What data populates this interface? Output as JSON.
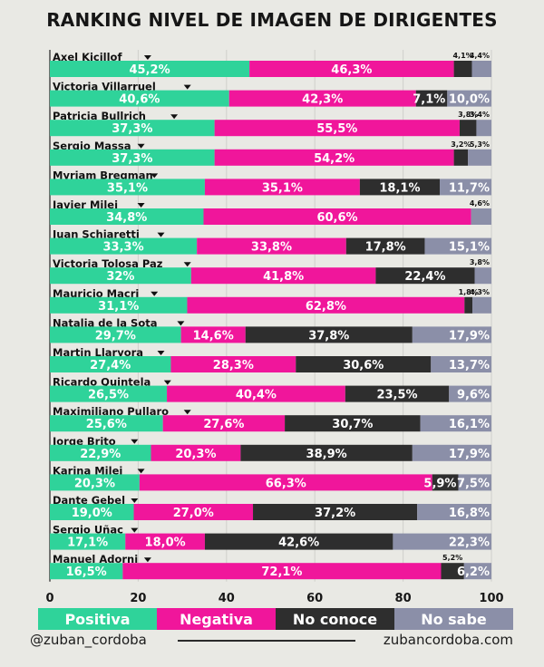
{
  "chart_data": {
    "type": "bar",
    "stacked": true,
    "orientation": "horizontal",
    "title": "RANKING NIVEL DE IMAGEN DE DIRIGENTES",
    "xlim": [
      0,
      100
    ],
    "xticks": [
      "0",
      "20",
      "40",
      "60",
      "80",
      "100"
    ],
    "grid": true,
    "legend_position": "bottom",
    "categories": [
      "Axel Kicillof",
      "Victoria Villarruel",
      "Patricia Bullrich",
      "Sergio Massa",
      "Myriam Bregman",
      "Javier Milei",
      "Juan Schiaretti",
      "Victoria Tolosa Paz",
      "Mauricio Macri",
      "Natalia de la Sota",
      "Martin Llaryora",
      "Ricardo Quintela",
      "Maximiliano Pullaro",
      "Jorge Brito",
      "Karina Milei",
      "Dante Gebel",
      "Sergio Uñac",
      "Manuel Adorni"
    ],
    "series": [
      {
        "name": "Positiva",
        "color": "#2fd39a",
        "values": [
          45.2,
          40.6,
          37.3,
          37.3,
          35.1,
          34.8,
          33.3,
          32,
          31.1,
          29.7,
          27.4,
          26.5,
          25.6,
          22.9,
          20.3,
          19.0,
          17.1,
          16.5
        ],
        "labels": [
          "45,2%",
          "40,6%",
          "37,3%",
          "37,3%",
          "35,1%",
          "34,8%",
          "33,3%",
          "32%",
          "31,1%",
          "29,7%",
          "27,4%",
          "26,5%",
          "25,6%",
          "22,9%",
          "20,3%",
          "19,0%",
          "17,1%",
          "16,5%"
        ]
      },
      {
        "name": "Negativa",
        "color": "#f0169b",
        "values": [
          46.3,
          42.3,
          55.5,
          54.2,
          35.1,
          60.6,
          33.8,
          41.8,
          62.8,
          14.6,
          28.3,
          40.4,
          27.6,
          20.3,
          66.3,
          27.0,
          18.0,
          72.1
        ],
        "labels": [
          "46,3%",
          "42,3%",
          "55,5%",
          "54,2%",
          "35,1%",
          "60,6%",
          "33,8%",
          "41,8%",
          "62,8%",
          "14,6%",
          "28,3%",
          "40,4%",
          "27,6%",
          "20,3%",
          "66,3%",
          "27,0%",
          "18,0%",
          "72,1%"
        ]
      },
      {
        "name": "No conoce",
        "color": "#2e2e2e",
        "values": [
          4.1,
          7.1,
          3.8,
          3.2,
          18.1,
          0,
          17.8,
          22.4,
          1.8,
          37.8,
          30.6,
          23.5,
          30.7,
          38.9,
          5.9,
          37.2,
          42.6,
          5.2
        ],
        "labels": [
          "4,1%",
          "7,1%",
          "3,8%",
          "3,2%",
          "18,1%",
          "",
          "17,8%",
          "22,4%",
          "1,8%",
          "37,8%",
          "30,6%",
          "23,5%",
          "30,7%",
          "38,9%",
          "5,9%",
          "37,2%",
          "42,6%",
          "5,2%"
        ]
      },
      {
        "name": "No sabe",
        "color": "#8b8fa8",
        "values": [
          4.4,
          10.0,
          3.4,
          5.3,
          11.7,
          4.6,
          15.1,
          3.8,
          4.3,
          17.9,
          13.7,
          9.6,
          16.1,
          17.9,
          7.5,
          16.8,
          22.3,
          6.2
        ],
        "labels": [
          "4,4%",
          "10,0%",
          "3,4%",
          "5,3%",
          "11,7%",
          "4,6%",
          "15,1%",
          "3,8%",
          "4,3%",
          "17,9%",
          "13,7%",
          "9,6%",
          "16,1%",
          "17,9%",
          "7,5%",
          "16,8%",
          "22,3%",
          "6,2%"
        ]
      }
    ]
  },
  "legend": {
    "positiva": "Positiva",
    "negativa": "Negativa",
    "no_conoce": "No conoce",
    "no_sabe": "No sabe"
  },
  "footer": {
    "handle": "@zuban_cordoba",
    "site": "zubancordoba.com"
  },
  "colors": {
    "background": "#e9e9e4",
    "grid": "#cfcfcb",
    "label_dark": "#111111",
    "label_light": "#ffffff"
  }
}
